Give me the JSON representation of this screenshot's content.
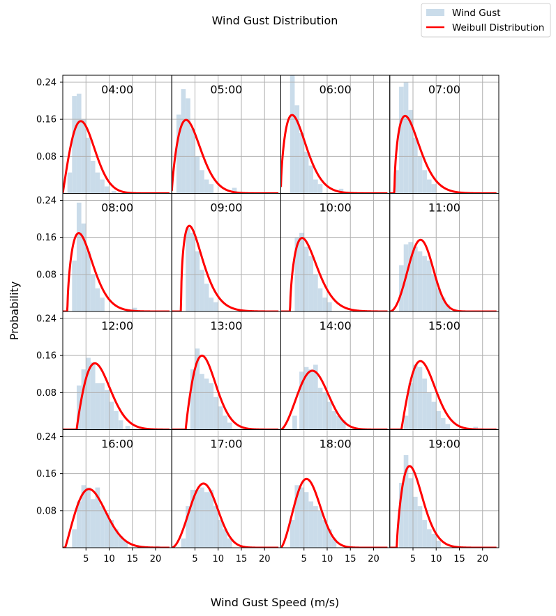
{
  "chart_data": {
    "type": "histogram-grid",
    "title": "Wind Gust Distribution",
    "xlabel": "Wind Gust Speed (m/s)",
    "ylabel": "Probability",
    "xlim": [
      0,
      23.5
    ],
    "ylim": [
      0,
      0.255
    ],
    "xticks": [
      5,
      10,
      15,
      20
    ],
    "yticks": [
      0.08,
      0.16,
      0.24
    ],
    "ytick_labels": [
      "0.08",
      "0.16",
      "0.24"
    ],
    "grid": true,
    "legend_position": "top-right",
    "legend": [
      {
        "label": "Wind Gust",
        "kind": "bar",
        "color": "#cadcea"
      },
      {
        "label": "Weibull Distribution",
        "kind": "line",
        "color": "#ff0000"
      }
    ],
    "colors": {
      "histogram": "#cadcea",
      "weibull": "#ff0000",
      "grid": "#b0b0b0"
    },
    "panels": [
      {
        "label": "04:00",
        "weibull": {
          "loc": 0.0,
          "shape": 2.0,
          "scale": 5.5
        },
        "hist": [
          [
            1.5,
            0.045
          ],
          [
            2.5,
            0.21
          ],
          [
            3.5,
            0.215
          ],
          [
            4.5,
            0.16
          ],
          [
            5.5,
            0.12
          ],
          [
            6.5,
            0.07
          ],
          [
            7.5,
            0.045
          ],
          [
            8.5,
            0.03
          ],
          [
            9.5,
            0.015
          ],
          [
            11.0,
            0.005
          ]
        ]
      },
      {
        "label": "05:00",
        "weibull": {
          "loc": 0.0,
          "shape": 1.75,
          "scale": 5.0
        },
        "hist": [
          [
            1.5,
            0.17
          ],
          [
            2.5,
            0.225
          ],
          [
            3.5,
            0.205
          ],
          [
            4.5,
            0.14
          ],
          [
            5.5,
            0.08
          ],
          [
            6.5,
            0.05
          ],
          [
            7.5,
            0.03
          ],
          [
            8.5,
            0.02
          ],
          [
            13.5,
            0.012
          ]
        ]
      },
      {
        "label": "06:00",
        "weibull": {
          "loc": 0.0,
          "shape": 1.6,
          "scale": 4.5
        },
        "hist": [
          [
            2.5,
            0.255
          ],
          [
            3.5,
            0.19
          ],
          [
            4.5,
            0.13
          ],
          [
            5.5,
            0.09
          ],
          [
            6.5,
            0.06
          ],
          [
            7.5,
            0.03
          ],
          [
            8.5,
            0.02
          ],
          [
            13.0,
            0.01
          ]
        ]
      },
      {
        "label": "07:00",
        "weibull": {
          "loc": 1.0,
          "shape": 1.55,
          "scale": 4.5
        },
        "hist": [
          [
            1.5,
            0.05
          ],
          [
            2.5,
            0.23
          ],
          [
            3.5,
            0.24
          ],
          [
            4.5,
            0.18
          ],
          [
            5.5,
            0.12
          ],
          [
            6.5,
            0.08
          ],
          [
            7.5,
            0.05
          ],
          [
            8.5,
            0.03
          ],
          [
            9.5,
            0.02
          ],
          [
            14.0,
            0.005
          ]
        ]
      },
      {
        "label": "08:00",
        "weibull": {
          "loc": 1.0,
          "shape": 1.6,
          "scale": 4.5
        },
        "hist": [
          [
            2.5,
            0.11
          ],
          [
            3.5,
            0.235
          ],
          [
            4.5,
            0.19
          ],
          [
            5.5,
            0.13
          ],
          [
            6.5,
            0.08
          ],
          [
            7.5,
            0.05
          ],
          [
            8.5,
            0.03
          ],
          [
            15.5,
            0.008
          ]
        ]
      },
      {
        "label": "09:00",
        "weibull": {
          "loc": 2.0,
          "shape": 1.45,
          "scale": 4.0
        },
        "hist": [
          [
            3.5,
            0.18
          ],
          [
            4.5,
            0.17
          ],
          [
            5.5,
            0.13
          ],
          [
            6.5,
            0.09
          ],
          [
            7.5,
            0.06
          ],
          [
            8.5,
            0.03
          ],
          [
            9.5,
            0.02
          ]
        ]
      },
      {
        "label": "10:00",
        "weibull": {
          "loc": 2.0,
          "shape": 1.6,
          "scale": 4.8
        },
        "hist": [
          [
            3.5,
            0.16
          ],
          [
            4.5,
            0.17
          ],
          [
            5.5,
            0.14
          ],
          [
            6.5,
            0.12
          ],
          [
            7.5,
            0.08
          ],
          [
            8.5,
            0.05
          ],
          [
            9.5,
            0.03
          ],
          [
            10.5,
            0.02
          ]
        ]
      },
      {
        "label": "11:00",
        "weibull": {
          "loc": 0.0,
          "shape": 3.0,
          "scale": 7.6
        },
        "hist": [
          [
            2.5,
            0.1
          ],
          [
            3.5,
            0.145
          ],
          [
            4.5,
            0.15
          ],
          [
            5.5,
            0.14
          ],
          [
            6.5,
            0.13
          ],
          [
            7.5,
            0.12
          ],
          [
            8.5,
            0.11
          ],
          [
            9.5,
            0.08
          ],
          [
            10.5,
            0.05
          ],
          [
            11.5,
            0.03
          ],
          [
            12.5,
            0.015
          ]
        ]
      },
      {
        "label": "12:00",
        "weibull": {
          "loc": 3.0,
          "shape": 1.9,
          "scale": 5.8
        },
        "hist": [
          [
            3.5,
            0.095
          ],
          [
            4.5,
            0.13
          ],
          [
            5.5,
            0.155
          ],
          [
            6.5,
            0.145
          ],
          [
            7.5,
            0.1
          ],
          [
            8.5,
            0.1
          ],
          [
            9.5,
            0.085
          ],
          [
            10.5,
            0.06
          ],
          [
            11.5,
            0.04
          ],
          [
            12.5,
            0.02
          ],
          [
            14.0,
            0.008
          ]
        ]
      },
      {
        "label": "13:00",
        "weibull": {
          "loc": 3.0,
          "shape": 1.9,
          "scale": 5.2
        },
        "hist": [
          [
            4.5,
            0.13
          ],
          [
            5.5,
            0.175
          ],
          [
            6.5,
            0.12
          ],
          [
            7.5,
            0.11
          ],
          [
            8.5,
            0.1
          ],
          [
            9.5,
            0.07
          ],
          [
            10.5,
            0.05
          ],
          [
            11.5,
            0.03
          ],
          [
            12.5,
            0.015
          ]
        ]
      },
      {
        "label": "14:00",
        "weibull": {
          "loc": 0.0,
          "shape": 2.6,
          "scale": 8.2
        },
        "hist": [
          [
            3.0,
            0.03
          ],
          [
            4.5,
            0.125
          ],
          [
            5.5,
            0.135
          ],
          [
            6.5,
            0.13
          ],
          [
            7.5,
            0.14
          ],
          [
            8.5,
            0.09
          ],
          [
            9.5,
            0.08
          ],
          [
            10.5,
            0.06
          ],
          [
            11.5,
            0.04
          ],
          [
            12.5,
            0.03
          ],
          [
            13.5,
            0.02
          ]
        ]
      },
      {
        "label": "15:00",
        "weibull": {
          "loc": 2.5,
          "shape": 2.0,
          "scale": 5.8
        },
        "hist": [
          [
            3.5,
            0.03
          ],
          [
            4.5,
            0.1
          ],
          [
            5.5,
            0.14
          ],
          [
            6.5,
            0.135
          ],
          [
            7.5,
            0.11
          ],
          [
            8.5,
            0.08
          ],
          [
            9.5,
            0.06
          ],
          [
            10.5,
            0.04
          ],
          [
            11.5,
            0.025
          ],
          [
            12.5,
            0.012
          ],
          [
            18.5,
            0.006
          ]
        ]
      },
      {
        "label": "16:00",
        "weibull": {
          "loc": 0.5,
          "shape": 2.1,
          "scale": 7.0
        },
        "hist": [
          [
            2.5,
            0.04
          ],
          [
            3.5,
            0.1
          ],
          [
            4.5,
            0.135
          ],
          [
            5.5,
            0.13
          ],
          [
            6.5,
            0.105
          ],
          [
            7.5,
            0.13
          ],
          [
            8.5,
            0.09
          ],
          [
            9.5,
            0.075
          ],
          [
            10.5,
            0.06
          ],
          [
            11.5,
            0.04
          ],
          [
            12.5,
            0.025
          ],
          [
            13.5,
            0.015
          ],
          [
            20.5,
            0.004
          ]
        ]
      },
      {
        "label": "17:00",
        "weibull": {
          "loc": 0.0,
          "shape": 2.8,
          "scale": 8.0
        },
        "hist": [
          [
            2.5,
            0.02
          ],
          [
            3.5,
            0.09
          ],
          [
            4.5,
            0.125
          ],
          [
            5.5,
            0.125
          ],
          [
            6.5,
            0.13
          ],
          [
            7.5,
            0.12
          ],
          [
            8.5,
            0.125
          ],
          [
            9.5,
            0.09
          ],
          [
            10.5,
            0.06
          ],
          [
            11.5,
            0.04
          ],
          [
            12.5,
            0.02
          ]
        ]
      },
      {
        "label": "18:00",
        "weibull": {
          "loc": 0.0,
          "shape": 2.5,
          "scale": 6.8
        },
        "hist": [
          [
            2.5,
            0.06
          ],
          [
            3.5,
            0.135
          ],
          [
            4.5,
            0.13
          ],
          [
            5.5,
            0.12
          ],
          [
            6.5,
            0.1
          ],
          [
            7.5,
            0.09
          ],
          [
            8.5,
            0.08
          ],
          [
            9.5,
            0.06
          ],
          [
            10.5,
            0.04
          ],
          [
            11.5,
            0.02
          ]
        ]
      },
      {
        "label": "19:00",
        "weibull": {
          "loc": 1.5,
          "shape": 1.75,
          "scale": 4.5
        },
        "hist": [
          [
            2.5,
            0.14
          ],
          [
            3.5,
            0.2
          ],
          [
            4.5,
            0.15
          ],
          [
            5.5,
            0.11
          ],
          [
            6.5,
            0.09
          ],
          [
            7.5,
            0.06
          ],
          [
            8.5,
            0.04
          ],
          [
            9.5,
            0.03
          ],
          [
            10.5,
            0.015
          ]
        ]
      }
    ]
  }
}
